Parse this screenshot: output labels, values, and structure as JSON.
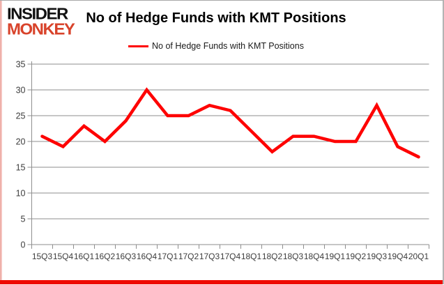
{
  "logo": {
    "line1": "INSIDER",
    "line2": "MONKEY",
    "line1_color": "#121212",
    "line2_color": "#d8432b"
  },
  "header": {
    "title": "No of Hedge Funds with KMT Positions"
  },
  "legend": {
    "label": "No of Hedge Funds with KMT Positions"
  },
  "frame": {
    "bottom_stripe_color": "#ee0b00",
    "left_stripe_color": "#f2afa9"
  },
  "chart_data": {
    "type": "line",
    "title": "No of Hedge Funds with KMT Positions",
    "xlabel": "",
    "ylabel": "",
    "categories": [
      "15Q3",
      "15Q4",
      "16Q1",
      "16Q2",
      "16Q3",
      "16Q4",
      "17Q1",
      "17Q2",
      "17Q3",
      "17Q4",
      "18Q1",
      "18Q2",
      "18Q3",
      "18Q4",
      "19Q1",
      "19Q2",
      "19Q3",
      "19Q4",
      "20Q1"
    ],
    "series": [
      {
        "name": "No of Hedge Funds with KMT Positions",
        "color": "#fe0000",
        "values": [
          21,
          19,
          23,
          20,
          24,
          30,
          25,
          25,
          27,
          26,
          22,
          18,
          21,
          21,
          20,
          20,
          27,
          19,
          17
        ]
      }
    ],
    "ylim": [
      0,
      35
    ],
    "yticks": [
      0,
      5,
      10,
      15,
      20,
      25,
      30,
      35
    ],
    "grid": true,
    "gridline_color": "#8e8e8e",
    "axis_line_color": "#8e8e8e",
    "axis_text_color": "#3c3c3c",
    "legend_position": "top-center"
  }
}
